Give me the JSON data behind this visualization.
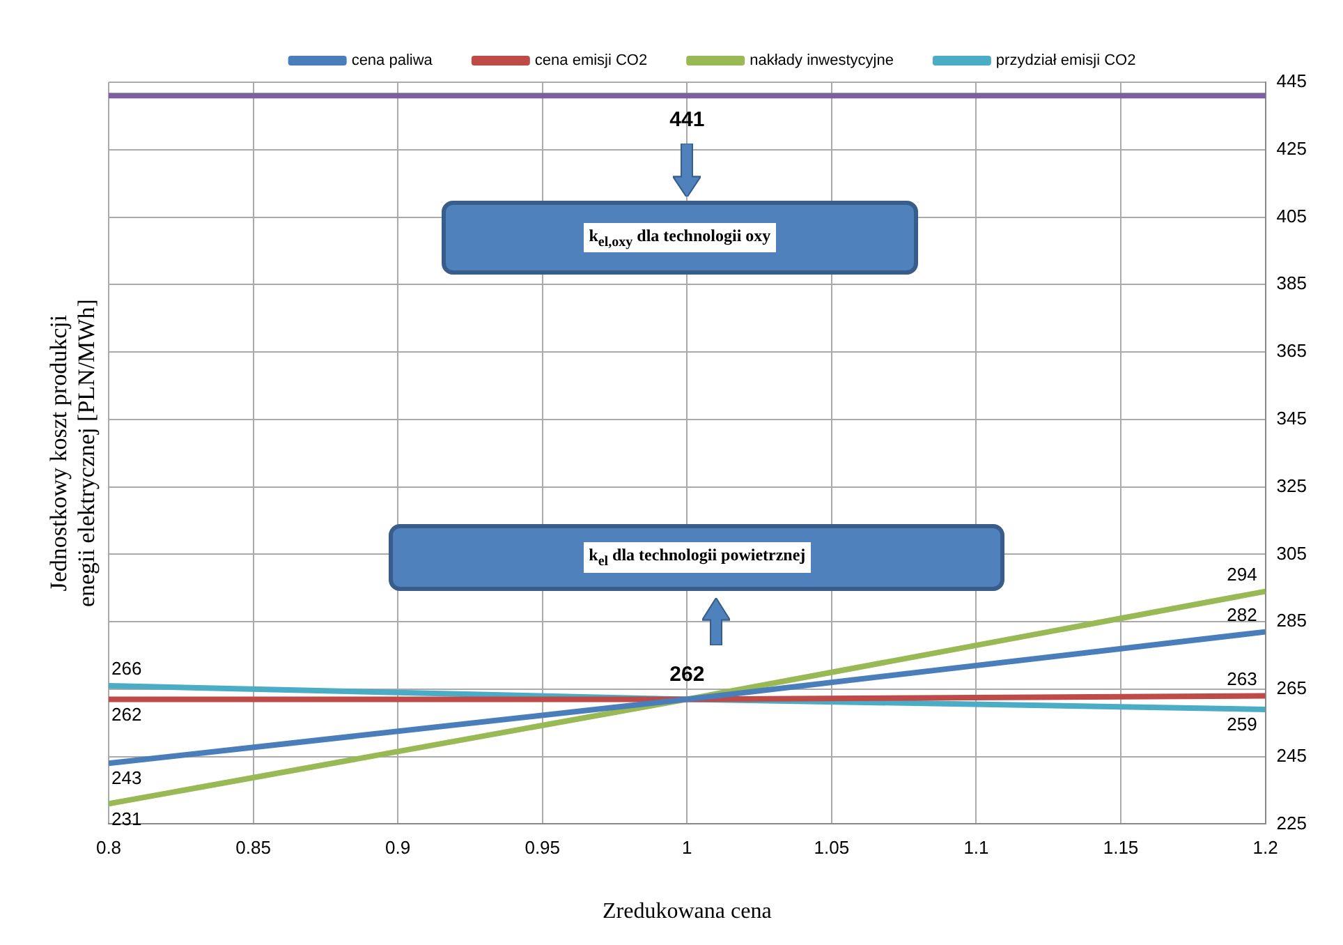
{
  "chart_data": {
    "type": "line",
    "xlabel": "Zredukowana cena",
    "ylabel": "Jednostkowy koszt produkcji\nenegii elektrycznej [PLN/MWh]",
    "x": [
      0.8,
      1,
      1.2
    ],
    "series": [
      {
        "name": "cena paliwa",
        "color": "#4a7ebb",
        "values": [
          243,
          262,
          282
        ],
        "value_labels": [
          "243",
          null,
          "282"
        ]
      },
      {
        "name": "cena emisji CO2",
        "color": "#be4b48",
        "values": [
          262,
          262,
          263
        ],
        "value_labels": [
          "262",
          null,
          "263"
        ]
      },
      {
        "name": "nakłady inwestycyjne",
        "color": "#98b954",
        "values": [
          231,
          262,
          294
        ],
        "value_labels": [
          "231",
          null,
          "294"
        ]
      },
      {
        "name": "przydział emisji CO2",
        "color": "#4bacc6",
        "values": [
          266,
          262,
          259
        ],
        "value_labels": [
          "266",
          null,
          "259"
        ]
      }
    ],
    "ref_lines": [
      {
        "axis": "y",
        "value": 441,
        "color": "#7d60a0"
      }
    ],
    "annotations": [
      {
        "text": "441",
        "x": 1,
        "y": 441
      },
      "k$_{el,oxy}$ dla technologii oxy",
      "k$_{el}$ dla technologii powietrznej",
      {
        "text": "262",
        "x": 1,
        "y": 262
      }
    ],
    "xlim": [
      0.8,
      1.2
    ],
    "xticks": [
      0.8,
      0.85,
      0.9,
      0.95,
      1,
      1.05,
      1.1,
      1.15,
      1.2
    ],
    "ylim": [
      225,
      445
    ],
    "yticks": [
      225,
      245,
      265,
      285,
      305,
      325,
      345,
      365,
      385,
      405,
      425,
      445
    ],
    "grid": true,
    "legend": "top",
    "marker": "none",
    "line_style": "solid"
  }
}
